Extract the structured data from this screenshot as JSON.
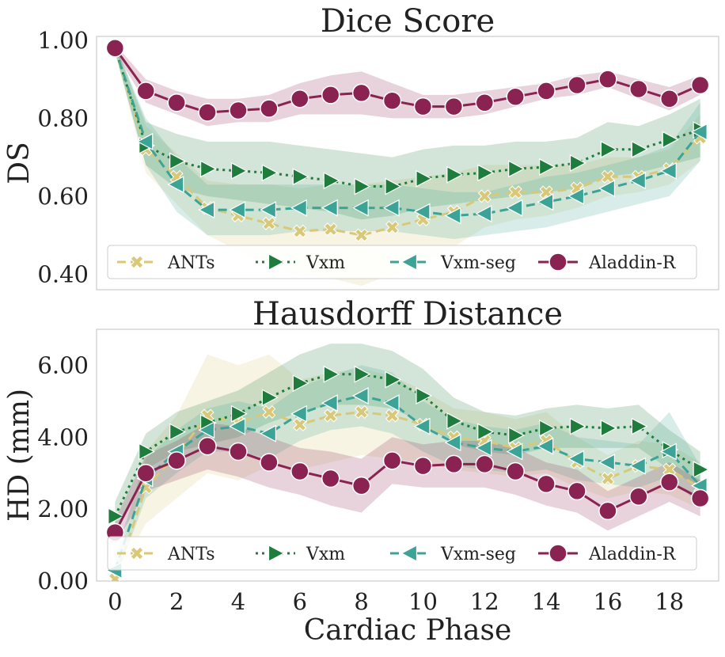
{
  "chart_data": [
    {
      "type": "line",
      "title": "Dice Score",
      "xlabel": "",
      "ylabel": "DS",
      "xlim": [
        -0.6,
        19.6
      ],
      "ylim": [
        0.36,
        1.01
      ],
      "yticks": [
        0.4,
        0.6,
        0.8,
        1.0
      ],
      "yticklabels": [
        "0.40",
        "0.60",
        "0.80",
        "1.00"
      ],
      "xticks": [],
      "xticklabels": [],
      "legend": "bottom-center",
      "x": [
        0,
        1,
        2,
        3,
        4,
        5,
        6,
        7,
        8,
        9,
        10,
        11,
        12,
        13,
        14,
        15,
        16,
        17,
        18,
        19
      ],
      "series": [
        {
          "name": "ANTs",
          "color": "#d8c878",
          "marker": "x",
          "dash": "dashed",
          "values": [
            0.98,
            0.72,
            0.65,
            0.57,
            0.55,
            0.53,
            0.51,
            0.515,
            0.5,
            0.52,
            0.54,
            0.56,
            0.6,
            0.61,
            0.61,
            0.62,
            0.65,
            0.65,
            0.67,
            0.75
          ],
          "lower": [
            0.97,
            0.66,
            0.58,
            0.5,
            0.46,
            0.42,
            0.4,
            0.39,
            0.37,
            0.4,
            0.43,
            0.47,
            0.52,
            0.54,
            0.55,
            0.57,
            0.6,
            0.61,
            0.63,
            0.69
          ],
          "upper": [
            0.99,
            0.78,
            0.71,
            0.64,
            0.63,
            0.63,
            0.62,
            0.63,
            0.63,
            0.64,
            0.65,
            0.66,
            0.68,
            0.68,
            0.68,
            0.68,
            0.7,
            0.7,
            0.72,
            0.81
          ]
        },
        {
          "name": "Vxm",
          "color": "#1e7d3c",
          "marker": "triangle-right",
          "dash": "dotted",
          "values": [
            0.98,
            0.73,
            0.69,
            0.67,
            0.665,
            0.66,
            0.65,
            0.64,
            0.625,
            0.625,
            0.645,
            0.655,
            0.66,
            0.67,
            0.675,
            0.685,
            0.72,
            0.72,
            0.745,
            0.77
          ],
          "lower": [
            0.97,
            0.68,
            0.62,
            0.6,
            0.59,
            0.58,
            0.57,
            0.56,
            0.54,
            0.55,
            0.57,
            0.58,
            0.59,
            0.6,
            0.61,
            0.62,
            0.65,
            0.66,
            0.68,
            0.7
          ],
          "upper": [
            0.99,
            0.79,
            0.76,
            0.74,
            0.74,
            0.74,
            0.73,
            0.72,
            0.71,
            0.7,
            0.72,
            0.73,
            0.73,
            0.74,
            0.74,
            0.75,
            0.79,
            0.78,
            0.81,
            0.85
          ]
        },
        {
          "name": "Vxm-seg",
          "color": "#3ba496",
          "marker": "triangle-left",
          "dash": "dashed",
          "values": [
            0.98,
            0.74,
            0.63,
            0.565,
            0.565,
            0.565,
            0.57,
            0.57,
            0.57,
            0.57,
            0.56,
            0.55,
            0.555,
            0.57,
            0.585,
            0.6,
            0.62,
            0.64,
            0.665,
            0.765
          ],
          "lower": [
            0.97,
            0.68,
            0.56,
            0.5,
            0.5,
            0.5,
            0.51,
            0.51,
            0.51,
            0.51,
            0.5,
            0.49,
            0.5,
            0.51,
            0.52,
            0.54,
            0.56,
            0.58,
            0.6,
            0.69
          ],
          "upper": [
            0.99,
            0.8,
            0.7,
            0.63,
            0.63,
            0.63,
            0.63,
            0.63,
            0.63,
            0.63,
            0.62,
            0.61,
            0.61,
            0.63,
            0.65,
            0.66,
            0.68,
            0.7,
            0.73,
            0.84
          ]
        },
        {
          "name": "Aladdin-R",
          "color": "#8a2252",
          "marker": "circle",
          "dash": "solid",
          "values": [
            0.98,
            0.87,
            0.84,
            0.815,
            0.82,
            0.825,
            0.85,
            0.86,
            0.865,
            0.845,
            0.83,
            0.83,
            0.84,
            0.855,
            0.87,
            0.885,
            0.9,
            0.875,
            0.85,
            0.885
          ],
          "lower": [
            0.97,
            0.84,
            0.81,
            0.78,
            0.79,
            0.79,
            0.81,
            0.81,
            0.81,
            0.8,
            0.8,
            0.8,
            0.81,
            0.83,
            0.85,
            0.86,
            0.88,
            0.85,
            0.82,
            0.86
          ],
          "upper": [
            0.99,
            0.9,
            0.87,
            0.85,
            0.85,
            0.86,
            0.89,
            0.91,
            0.92,
            0.89,
            0.86,
            0.86,
            0.87,
            0.88,
            0.89,
            0.91,
            0.92,
            0.9,
            0.88,
            0.91
          ]
        }
      ]
    },
    {
      "type": "line",
      "title": "Hausdorff Distance",
      "xlabel": "Cardiac Phase",
      "ylabel": "HD (mm)",
      "xlim": [
        -0.6,
        19.6
      ],
      "ylim": [
        0.0,
        7.0
      ],
      "yticks": [
        0,
        2,
        4,
        6
      ],
      "yticklabels": [
        "0.00",
        "2.00",
        "4.00",
        "6.00"
      ],
      "xticks": [
        0,
        2,
        4,
        6,
        8,
        10,
        12,
        14,
        16,
        18
      ],
      "xticklabels": [
        "0",
        "2",
        "4",
        "6",
        "8",
        "10",
        "12",
        "14",
        "16",
        "18"
      ],
      "legend": "bottom-center",
      "x": [
        0,
        1,
        2,
        3,
        4,
        5,
        6,
        7,
        8,
        9,
        10,
        11,
        12,
        13,
        14,
        15,
        16,
        17,
        18,
        19
      ],
      "series": [
        {
          "name": "ANTs",
          "color": "#d8c878",
          "marker": "x",
          "dash": "dashed",
          "values": [
            0.05,
            2.6,
            3.5,
            4.6,
            4.4,
            4.7,
            4.35,
            4.6,
            4.7,
            4.6,
            4.35,
            4.0,
            3.9,
            3.7,
            3.9,
            3.3,
            2.85,
            3.2,
            3.1,
            2.6
          ],
          "lower": [
            0.0,
            1.6,
            2.3,
            3.0,
            2.8,
            3.2,
            3.1,
            3.3,
            3.5,
            3.4,
            3.3,
            3.1,
            3.0,
            2.9,
            3.0,
            2.6,
            2.3,
            2.5,
            2.4,
            2.0
          ],
          "upper": [
            0.4,
            3.6,
            4.6,
            6.3,
            6.0,
            6.3,
            5.6,
            5.8,
            5.9,
            5.7,
            5.3,
            4.8,
            4.7,
            4.5,
            4.7,
            4.0,
            3.5,
            3.9,
            3.8,
            3.3
          ]
        },
        {
          "name": "Vxm",
          "color": "#1e7d3c",
          "marker": "triangle-right",
          "dash": "dotted",
          "values": [
            1.8,
            3.6,
            4.15,
            4.4,
            4.65,
            5.1,
            5.5,
            5.75,
            5.75,
            5.6,
            5.15,
            4.45,
            4.15,
            4.05,
            4.25,
            4.3,
            4.25,
            4.3,
            3.65,
            3.1
          ],
          "lower": [
            1.4,
            3.1,
            3.6,
            3.8,
            4.0,
            4.4,
            4.7,
            4.9,
            4.9,
            4.8,
            4.4,
            3.8,
            3.6,
            3.5,
            3.7,
            3.7,
            3.7,
            3.7,
            3.1,
            2.6
          ],
          "upper": [
            2.2,
            4.1,
            4.7,
            5.0,
            5.3,
            5.8,
            6.3,
            6.6,
            6.6,
            6.4,
            5.9,
            5.1,
            4.7,
            4.6,
            4.8,
            4.9,
            4.8,
            4.9,
            4.2,
            3.6
          ]
        },
        {
          "name": "Vxm-seg",
          "color": "#3ba496",
          "marker": "triangle-left",
          "dash": "dashed",
          "values": [
            0.3,
            2.85,
            3.6,
            4.2,
            4.3,
            4.1,
            4.65,
            4.95,
            5.15,
            4.95,
            4.3,
            3.85,
            3.7,
            3.6,
            3.75,
            3.4,
            3.3,
            3.2,
            3.6,
            2.65
          ],
          "lower": [
            0.0,
            2.3,
            3.0,
            3.6,
            3.6,
            3.4,
            3.9,
            4.2,
            4.3,
            4.1,
            3.6,
            3.2,
            3.1,
            3.0,
            3.1,
            2.8,
            2.7,
            2.6,
            2.9,
            2.1
          ],
          "upper": [
            0.7,
            3.4,
            4.2,
            4.8,
            5.0,
            4.8,
            5.4,
            5.7,
            6.0,
            5.8,
            5.0,
            4.5,
            4.3,
            4.2,
            4.4,
            4.0,
            3.9,
            3.8,
            4.7,
            3.2
          ]
        },
        {
          "name": "Aladdin-R",
          "color": "#8a2252",
          "marker": "circle",
          "dash": "solid",
          "values": [
            1.35,
            3.0,
            3.35,
            3.75,
            3.6,
            3.3,
            3.05,
            2.85,
            2.65,
            3.35,
            3.2,
            3.25,
            3.25,
            3.05,
            2.7,
            2.5,
            1.95,
            2.35,
            2.75,
            2.3
          ],
          "lower": [
            1.0,
            2.5,
            2.8,
            3.1,
            2.9,
            2.6,
            2.4,
            2.1,
            1.9,
            2.7,
            2.6,
            2.6,
            2.6,
            2.4,
            2.1,
            1.9,
            1.4,
            1.8,
            2.2,
            1.8
          ],
          "upper": [
            1.7,
            3.5,
            3.9,
            4.4,
            4.3,
            4.0,
            3.7,
            3.6,
            3.4,
            4.0,
            3.8,
            3.9,
            3.9,
            3.7,
            3.3,
            3.1,
            2.5,
            2.9,
            3.3,
            2.8
          ]
        }
      ]
    }
  ]
}
